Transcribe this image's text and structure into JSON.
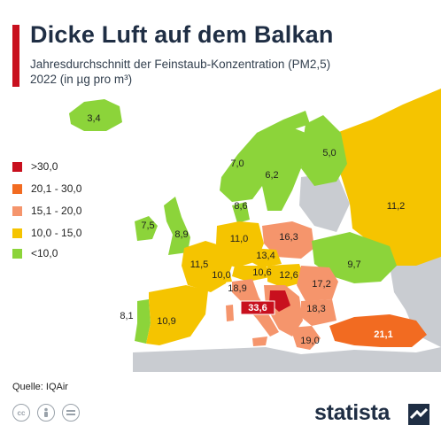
{
  "header": {
    "title": "Dicke Luft auf dem Balkan",
    "subtitle_line1": "Jahresdurchschnitt der Feinstaub-Konzentration (PM2,5)",
    "subtitle_line2": "2022 (in µg pro m³)"
  },
  "legend": [
    {
      "label": ">30,0",
      "color": "#c8101e"
    },
    {
      "label": "20,1 - 30,0",
      "color": "#f26b21"
    },
    {
      "label": "15,1 - 20,0",
      "color": "#f5956c"
    },
    {
      "label": "10,0 - 15,0",
      "color": "#f5c400"
    },
    {
      "label": "<10,0",
      "color": "#8cd43a"
    }
  ],
  "map_values": [
    {
      "country": "Island",
      "value": "3,4"
    },
    {
      "country": "Norwegen",
      "value": "7,0"
    },
    {
      "country": "Schweden",
      "value": "6,2"
    },
    {
      "country": "Finnland",
      "value": "5,0"
    },
    {
      "country": "Russland",
      "value": "11,2"
    },
    {
      "country": "Irland",
      "value": "7,5"
    },
    {
      "country": "Vereinigtes Königreich",
      "value": "8,9"
    },
    {
      "country": "Dänemark",
      "value": "8,6"
    },
    {
      "country": "Deutschland",
      "value": "11,0"
    },
    {
      "country": "Polen",
      "value": "16,3"
    },
    {
      "country": "Tschechien",
      "value": "13,4"
    },
    {
      "country": "Ukraine",
      "value": "9,7"
    },
    {
      "country": "Frankreich",
      "value": "11,5"
    },
    {
      "country": "Schweiz",
      "value": "10,0"
    },
    {
      "country": "Österreich",
      "value": "10,6"
    },
    {
      "country": "Ungarn",
      "value": "12,6"
    },
    {
      "country": "Rumänien",
      "value": "17,2"
    },
    {
      "country": "Italien",
      "value": "18,9"
    },
    {
      "country": "Bosnien und Herzegowina",
      "value": "33,6"
    },
    {
      "country": "Bulgarien",
      "value": "18,3"
    },
    {
      "country": "Griechenland",
      "value": "19,0"
    },
    {
      "country": "Türkei",
      "value": "21,1"
    },
    {
      "country": "Portugal",
      "value": "8,1"
    },
    {
      "country": "Spanien",
      "value": "10,9"
    }
  ],
  "colors": {
    "accent": "#c8101e",
    "title": "#1f2e44",
    "no_data": "#c9ccd1",
    "water": "#ffffff"
  },
  "footer": {
    "source": "Quelle: IQAir",
    "brand": "statista",
    "license_icons": [
      "cc-icon",
      "by-icon",
      "nd-icon"
    ]
  }
}
